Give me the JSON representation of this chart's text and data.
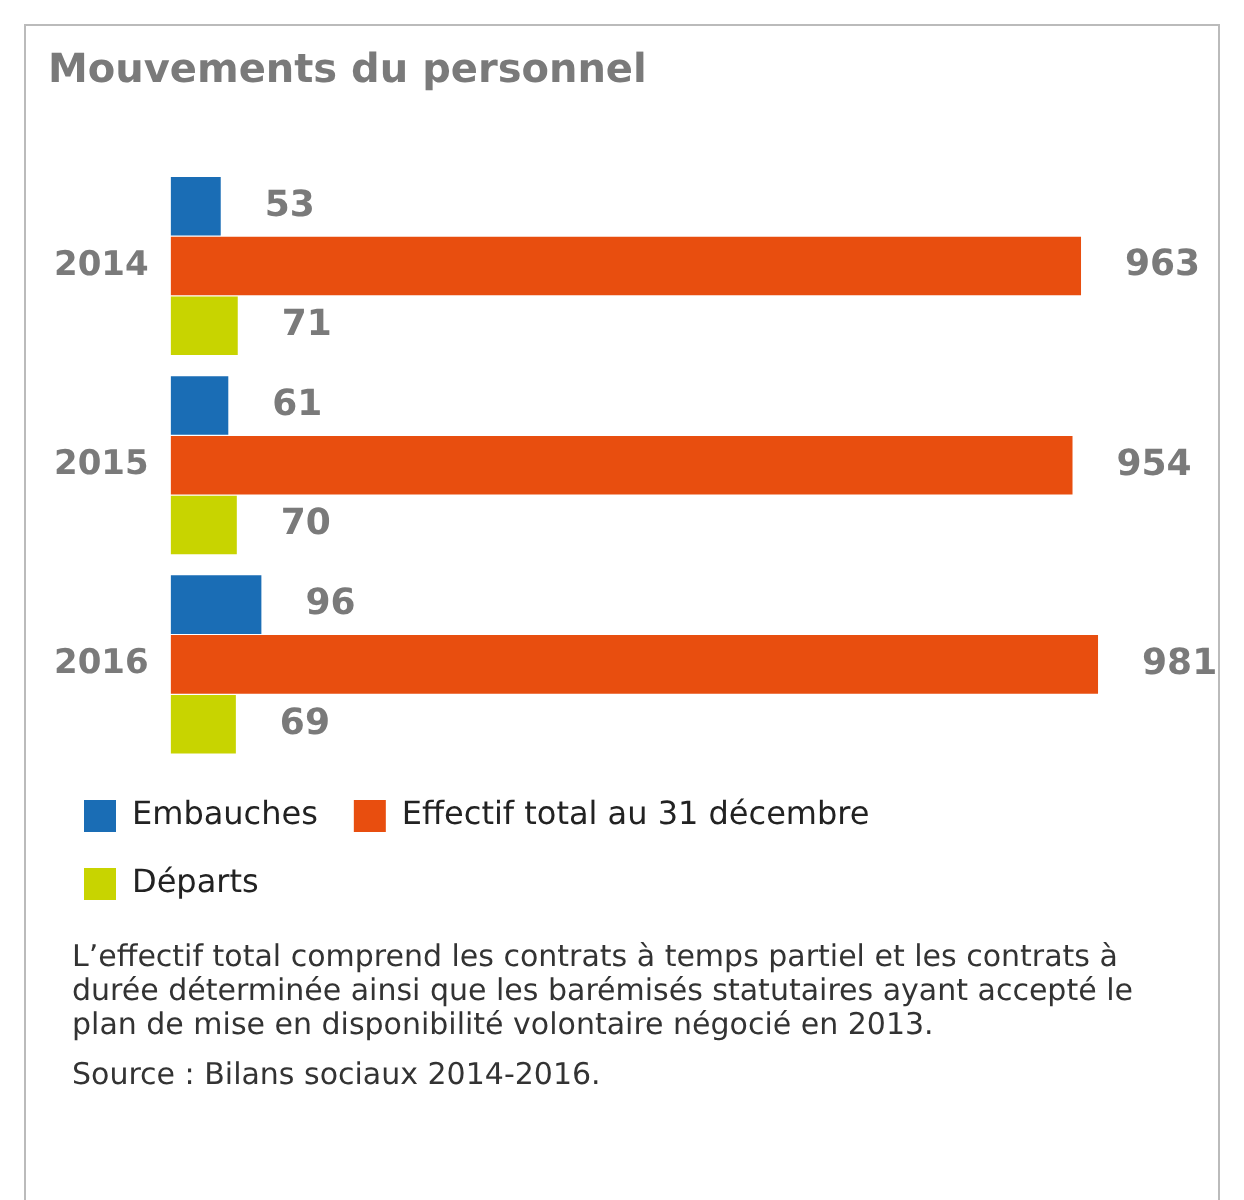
{
  "chart_data": {
    "type": "bar",
    "orientation": "horizontal",
    "title": "Mouvements du personnel",
    "categories": [
      "2014",
      "2015",
      "2016"
    ],
    "series": [
      {
        "name": "Embauches",
        "color": "#1a6db5",
        "values": [
          53,
          61,
          96
        ]
      },
      {
        "name": "Effectif total au 31 décembre",
        "color": "#e84e0f",
        "values": [
          963,
          954,
          981
        ]
      },
      {
        "name": "Départs",
        "color": "#c8d400",
        "values": [
          71,
          70,
          69
        ]
      }
    ],
    "data_labels": true,
    "legend": "bottom",
    "grid": false,
    "tick_labels": "y",
    "annotations": [
      "L’effectif total comprend les contrats à temps partiel et les contrats à durée déterminée ainsi que les barémisés statutaires ayant accepté le plan de mise en disponibilité volontaire négocié en 2013.",
      "Source : Bilans sociaux 2014-2016."
    ]
  }
}
